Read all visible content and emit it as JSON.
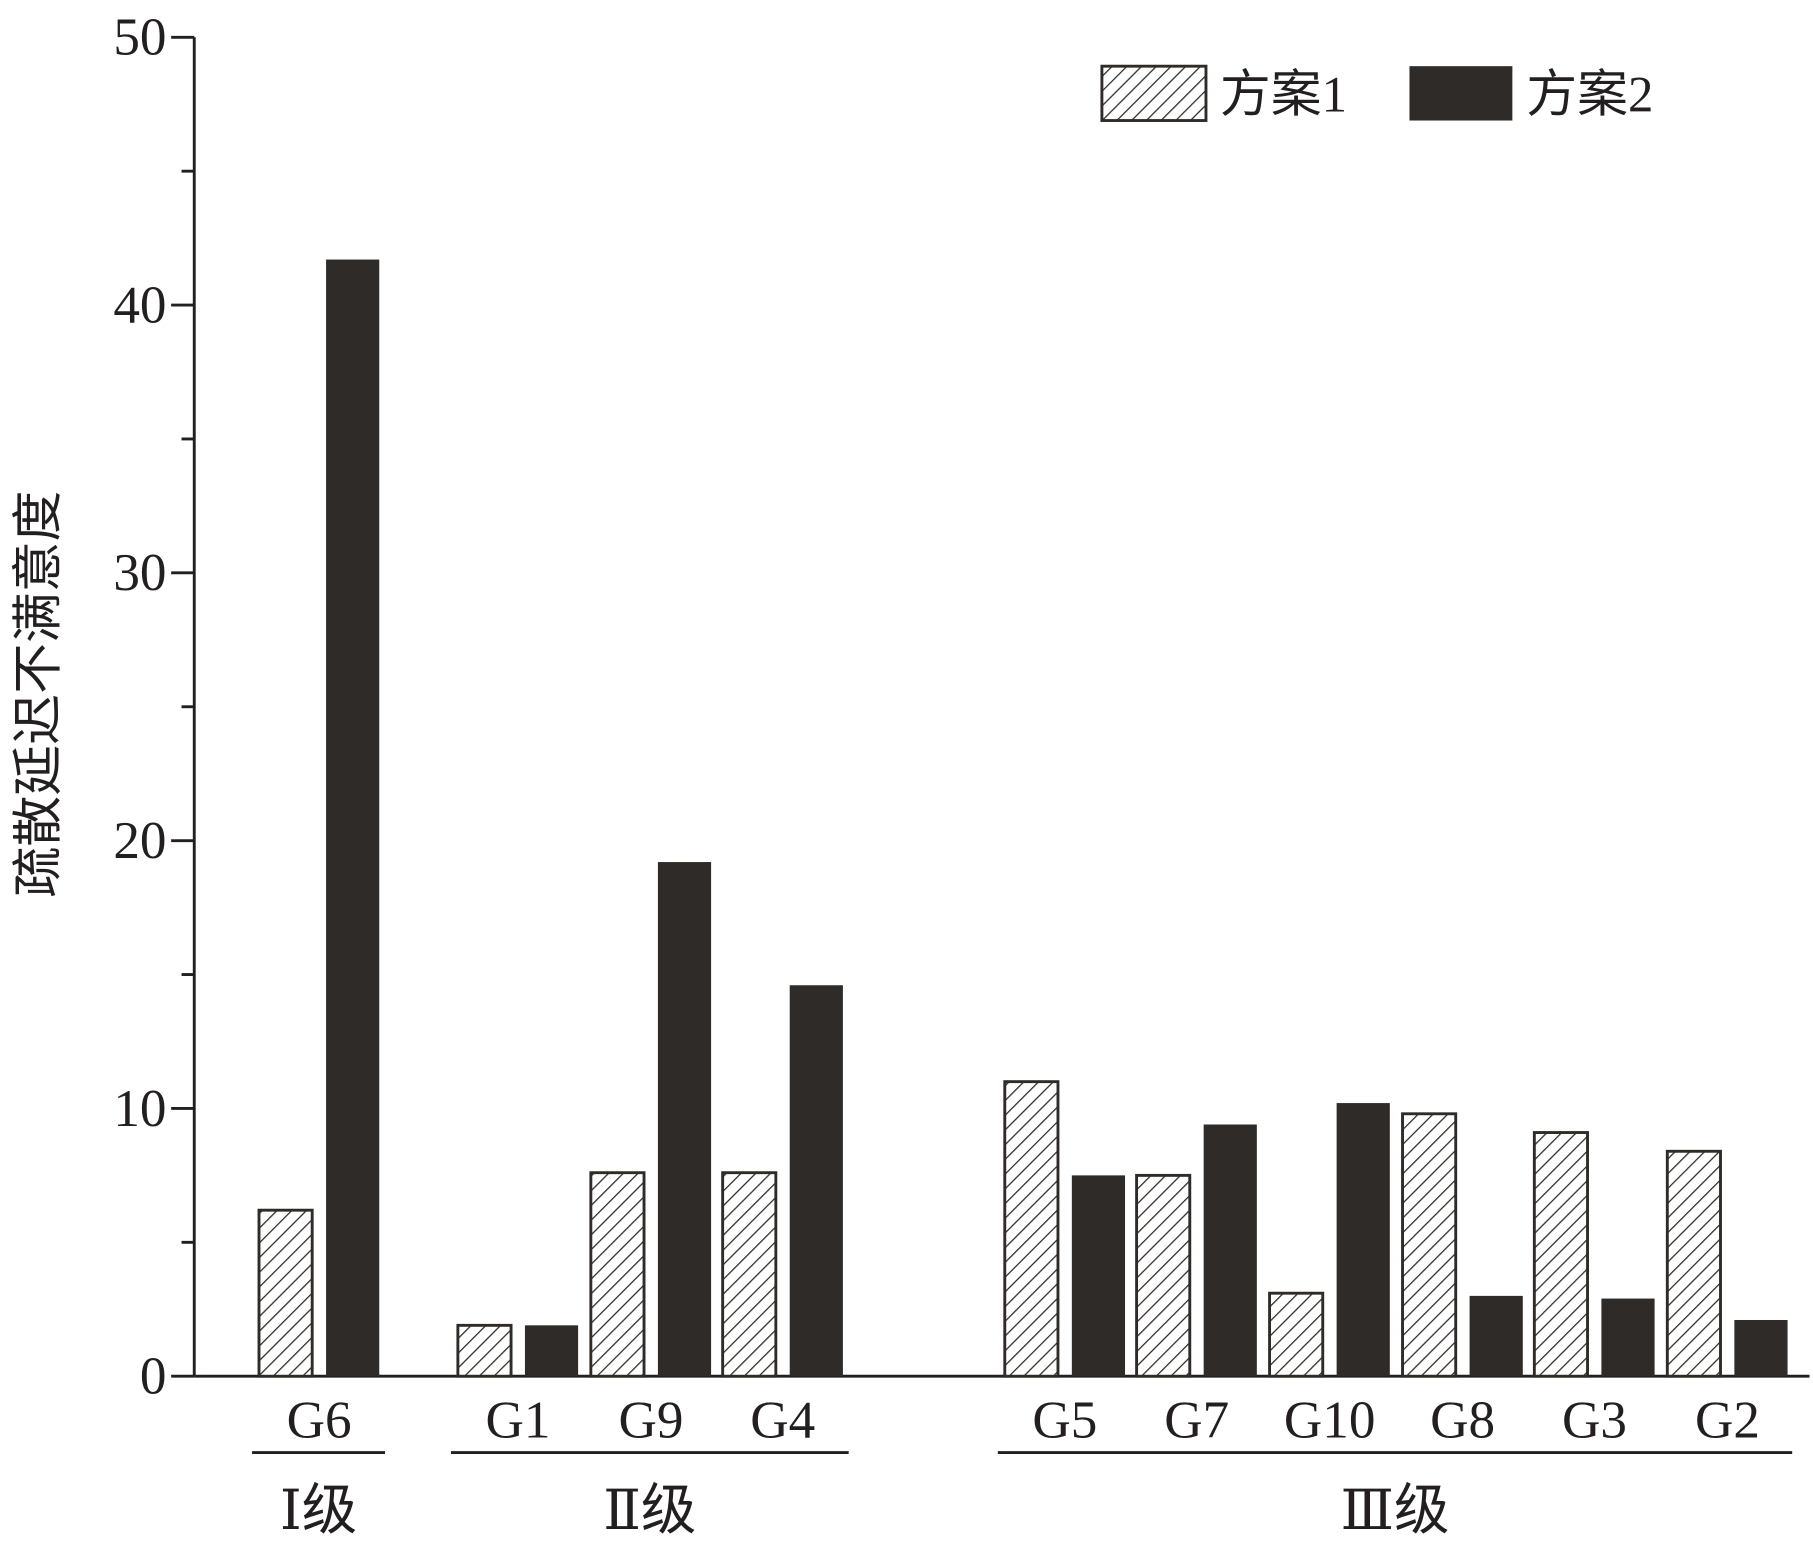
{
  "chart_data": {
    "type": "bar",
    "title": "",
    "xlabel": "",
    "ylabel": "疏散延迟不满意度",
    "ylim": [
      0,
      50
    ],
    "yticks": [
      "0",
      "10",
      "20",
      "30",
      "40",
      "50"
    ],
    "grid": false,
    "legend_position": "top-right",
    "categories": [
      "G6",
      "G1",
      "G9",
      "G4",
      "G5",
      "G7",
      "G10",
      "G8",
      "G3",
      "G2"
    ],
    "groups": [
      {
        "label": "Ⅰ级",
        "members": [
          "G6"
        ]
      },
      {
        "label": "Ⅱ级",
        "members": [
          "G1",
          "G9",
          "G4"
        ]
      },
      {
        "label": "Ⅲ级",
        "members": [
          "G5",
          "G7",
          "G10",
          "G8",
          "G3",
          "G2"
        ]
      }
    ],
    "series": [
      {
        "name": "方案1",
        "pattern": "hatched",
        "values": [
          6.2,
          1.9,
          7.6,
          7.6,
          11.0,
          7.5,
          3.1,
          9.8,
          9.1,
          8.4
        ]
      },
      {
        "name": "方案2",
        "pattern": "solid",
        "color": "#2f2b28",
        "values": [
          41.7,
          1.9,
          19.2,
          14.6,
          7.5,
          9.4,
          10.2,
          3.0,
          2.9,
          2.1
        ]
      }
    ]
  }
}
